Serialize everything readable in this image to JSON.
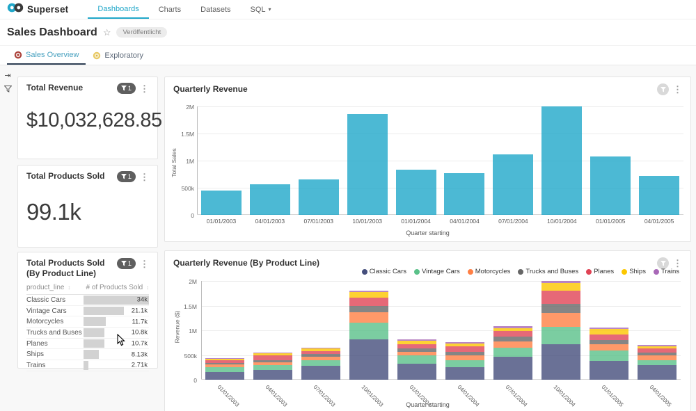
{
  "nav": {
    "brand": "Superset",
    "items": [
      {
        "label": "Dashboards",
        "active": true
      },
      {
        "label": "Charts",
        "active": false
      },
      {
        "label": "Datasets",
        "active": false
      },
      {
        "label": "SQL",
        "active": false,
        "caret": "▾"
      }
    ]
  },
  "page": {
    "title": "Sales Dashboard",
    "star_icon": "☆",
    "published_badge": "Veröffentlicht"
  },
  "tabs": [
    {
      "label": "Sales Overview",
      "icon": "target-emoji",
      "active": true
    },
    {
      "label": "Exploratory",
      "icon": "compass-emoji",
      "active": false
    }
  ],
  "filter_bar": {
    "expand_icon": "⇥",
    "filter_icon": "funnel"
  },
  "cards": {
    "total_revenue": {
      "title": "Total Revenue",
      "value": "$10,032,628.85",
      "filter_badge": "1"
    },
    "total_products_sold": {
      "title": "Total Products Sold",
      "value": "99.1k",
      "filter_badge": "1"
    },
    "products_by_line": {
      "title": "Total Products Sold (By Product Line)",
      "filter_badge": "1"
    },
    "quarterly_revenue": {
      "title": "Quarterly Revenue"
    },
    "quarterly_revenue_by_line": {
      "title": "Quarterly Revenue (By Product Line)"
    }
  },
  "kebab_icon": "⋮",
  "sort_icon": "↕",
  "chart_data": [
    {
      "id": "quarterly_revenue",
      "type": "bar",
      "title": "Quarterly Revenue",
      "xlabel": "Quarter starting",
      "ylabel": "Total Sales",
      "ylim": [
        0,
        2000000
      ],
      "yticks": [
        {
          "v": 0,
          "t": "0"
        },
        {
          "v": 500000,
          "t": "500k"
        },
        {
          "v": 1000000,
          "t": "1M"
        },
        {
          "v": 1500000,
          "t": "1.5M"
        },
        {
          "v": 2000000,
          "t": "2M"
        }
      ],
      "grid": true,
      "bar_color": "#1FA8C9",
      "categories": [
        "01/01/2003",
        "04/01/2003",
        "07/01/2003",
        "10/01/2003",
        "01/01/2004",
        "04/01/2004",
        "07/01/2004",
        "10/01/2004",
        "01/01/2005",
        "04/01/2005"
      ],
      "values": [
        445000,
        562000,
        650000,
        1855000,
        833000,
        768000,
        1110000,
        2020000,
        1071000,
        719000
      ]
    },
    {
      "id": "quarterly_revenue_by_product_line",
      "type": "bar",
      "stacked": true,
      "title": "Quarterly Revenue (By Product Line)",
      "xlabel": "Quarter starting",
      "ylabel": "Revenue ($)",
      "ylim": [
        0,
        2000000
      ],
      "yticks": [
        {
          "v": 0,
          "t": "0"
        },
        {
          "v": 500000,
          "t": "500k"
        },
        {
          "v": 1000000,
          "t": "1M"
        },
        {
          "v": 1500000,
          "t": "1.5M"
        },
        {
          "v": 2000000,
          "t": "2M"
        }
      ],
      "grid": true,
      "legend_position": "top-right",
      "categories": [
        "01/01/2003",
        "04/01/2003",
        "07/01/2003",
        "10/01/2003",
        "01/01/2004",
        "04/01/2004",
        "07/01/2004",
        "10/01/2004",
        "01/01/2005",
        "04/01/2005"
      ],
      "series": [
        {
          "name": "Classic Cars",
          "color": "#454E7C",
          "values": [
            150000,
            200000,
            280000,
            820000,
            330000,
            260000,
            470000,
            720000,
            380000,
            300000
          ]
        },
        {
          "name": "Vintage Cars",
          "color": "#5AC189",
          "values": [
            100000,
            90000,
            120000,
            330000,
            160000,
            130000,
            180000,
            350000,
            210000,
            100000
          ]
        },
        {
          "name": "Motorcycles",
          "color": "#FF7F44",
          "values": [
            55000,
            60000,
            70000,
            210000,
            80000,
            100000,
            120000,
            280000,
            130000,
            90000
          ]
        },
        {
          "name": "Trucks and Buses",
          "color": "#666666",
          "values": [
            30000,
            50000,
            50000,
            140000,
            60000,
            80000,
            100000,
            190000,
            80000,
            60000
          ]
        },
        {
          "name": "Planes",
          "color": "#E04355",
          "values": [
            60000,
            90000,
            60000,
            160000,
            90000,
            110000,
            110000,
            260000,
            120000,
            80000
          ]
        },
        {
          "name": "Ships",
          "color": "#FCC700",
          "values": [
            30000,
            50000,
            50000,
            110000,
            70000,
            60000,
            70000,
            160000,
            110000,
            50000
          ]
        },
        {
          "name": "Trains",
          "color": "#A868B7",
          "values": [
            10000,
            15000,
            20000,
            40000,
            30000,
            20000,
            40000,
            70000,
            30000,
            30000
          ]
        }
      ]
    },
    {
      "id": "products_by_line_table",
      "type": "table",
      "columns": [
        "product_line",
        "# of Products Sold"
      ],
      "max_value": 34000,
      "bar_color": "#d2d2d2",
      "rows": [
        {
          "label": "Classic Cars",
          "display": "34k",
          "value": 34000
        },
        {
          "label": "Vintage Cars",
          "display": "21.1k",
          "value": 21100
        },
        {
          "label": "Motorcycles",
          "display": "11.7k",
          "value": 11700
        },
        {
          "label": "Trucks and Buses",
          "display": "10.8k",
          "value": 10800
        },
        {
          "label": "Planes",
          "display": "10.7k",
          "value": 10700
        },
        {
          "label": "Ships",
          "display": "8.13k",
          "value": 8130
        },
        {
          "label": "Trains",
          "display": "2.71k",
          "value": 2710
        }
      ]
    }
  ]
}
